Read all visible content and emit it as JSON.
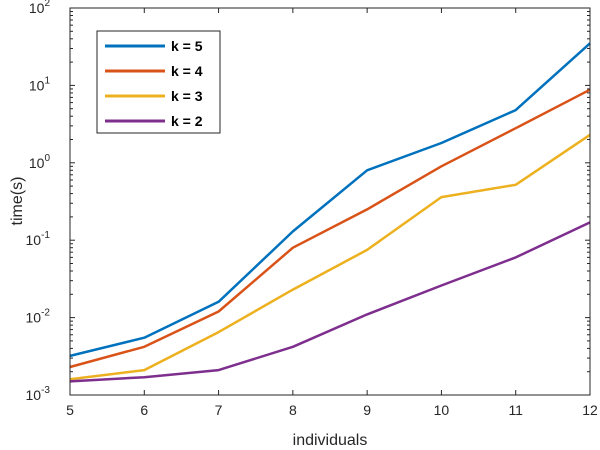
{
  "chart_data": {
    "type": "line",
    "title": "",
    "xlabel": "individuals",
    "ylabel": "time(s)",
    "x": [
      5,
      6,
      7,
      8,
      9,
      10,
      11,
      12
    ],
    "xlim": [
      5,
      12
    ],
    "ylim": [
      0.001,
      100
    ],
    "yscale": "log",
    "xticks": [
      "5",
      "6",
      "7",
      "8",
      "9",
      "10",
      "11",
      "12"
    ],
    "yticks": [
      {
        "base": "10",
        "exp": "-3"
      },
      {
        "base": "10",
        "exp": "-2"
      },
      {
        "base": "10",
        "exp": "-1"
      },
      {
        "base": "10",
        "exp": "0"
      },
      {
        "base": "10",
        "exp": "1"
      },
      {
        "base": "10",
        "exp": "2"
      }
    ],
    "grid": false,
    "legend_position": "top-left",
    "series": [
      {
        "name": "k = 5",
        "color": "#0072BD",
        "values": [
          0.0032,
          0.0055,
          0.016,
          0.13,
          0.8,
          1.8,
          4.8,
          35
        ]
      },
      {
        "name": "k = 4",
        "color": "#D95319",
        "values": [
          0.0023,
          0.0042,
          0.012,
          0.08,
          0.25,
          0.9,
          2.8,
          8.8
        ]
      },
      {
        "name": "k = 3",
        "color": "#EDB120",
        "values": [
          0.0016,
          0.0021,
          0.0065,
          0.023,
          0.075,
          0.36,
          0.52,
          2.3
        ]
      },
      {
        "name": "k = 2",
        "color": "#7E2F8E",
        "values": [
          0.0015,
          0.0017,
          0.0021,
          0.0042,
          0.011,
          0.026,
          0.06,
          0.17
        ]
      }
    ]
  }
}
